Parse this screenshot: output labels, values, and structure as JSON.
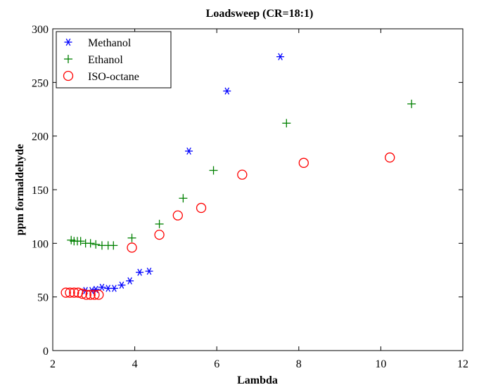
{
  "chart_data": {
    "type": "scatter",
    "title": "Loadsweep (CR=18:1)",
    "xlabel": "Lambda",
    "ylabel": "ppm formaldehyde",
    "xlim": [
      2,
      12
    ],
    "ylim": [
      0,
      300
    ],
    "xticks": [
      2,
      4,
      6,
      8,
      10,
      12
    ],
    "yticks": [
      0,
      50,
      100,
      150,
      200,
      250,
      300
    ],
    "grid": false,
    "legend_position": "top-left",
    "series": [
      {
        "name": "Methanol",
        "marker": "asterisk",
        "color": "#0000ff",
        "points": [
          [
            2.8,
            56
          ],
          [
            2.95,
            56
          ],
          [
            3.05,
            57
          ],
          [
            3.2,
            59
          ],
          [
            3.35,
            58
          ],
          [
            3.5,
            58
          ],
          [
            3.68,
            61
          ],
          [
            3.88,
            65
          ],
          [
            4.12,
            73
          ],
          [
            4.35,
            74
          ],
          [
            5.32,
            186
          ],
          [
            6.25,
            242
          ],
          [
            7.55,
            274
          ]
        ]
      },
      {
        "name": "Ethanol",
        "marker": "plus",
        "color": "#008000",
        "points": [
          [
            2.45,
            103
          ],
          [
            2.52,
            102
          ],
          [
            2.6,
            102
          ],
          [
            2.68,
            102
          ],
          [
            2.8,
            100
          ],
          [
            2.92,
            100
          ],
          [
            3.05,
            99
          ],
          [
            3.2,
            98
          ],
          [
            3.35,
            98
          ],
          [
            3.48,
            98
          ],
          [
            3.93,
            105
          ],
          [
            4.6,
            118
          ],
          [
            5.18,
            142
          ],
          [
            5.92,
            168
          ],
          [
            7.7,
            212
          ],
          [
            10.75,
            230
          ]
        ]
      },
      {
        "name": "ISO-octane",
        "marker": "circle",
        "color": "#ff0000",
        "points": [
          [
            2.32,
            54
          ],
          [
            2.42,
            54
          ],
          [
            2.52,
            54
          ],
          [
            2.62,
            54
          ],
          [
            2.72,
            53
          ],
          [
            2.82,
            52
          ],
          [
            2.92,
            52
          ],
          [
            3.02,
            52
          ],
          [
            3.12,
            52
          ],
          [
            3.93,
            96
          ],
          [
            4.6,
            108
          ],
          [
            5.05,
            126
          ],
          [
            5.62,
            133
          ],
          [
            6.62,
            164
          ],
          [
            8.12,
            175
          ],
          [
            10.22,
            180
          ]
        ]
      }
    ]
  }
}
